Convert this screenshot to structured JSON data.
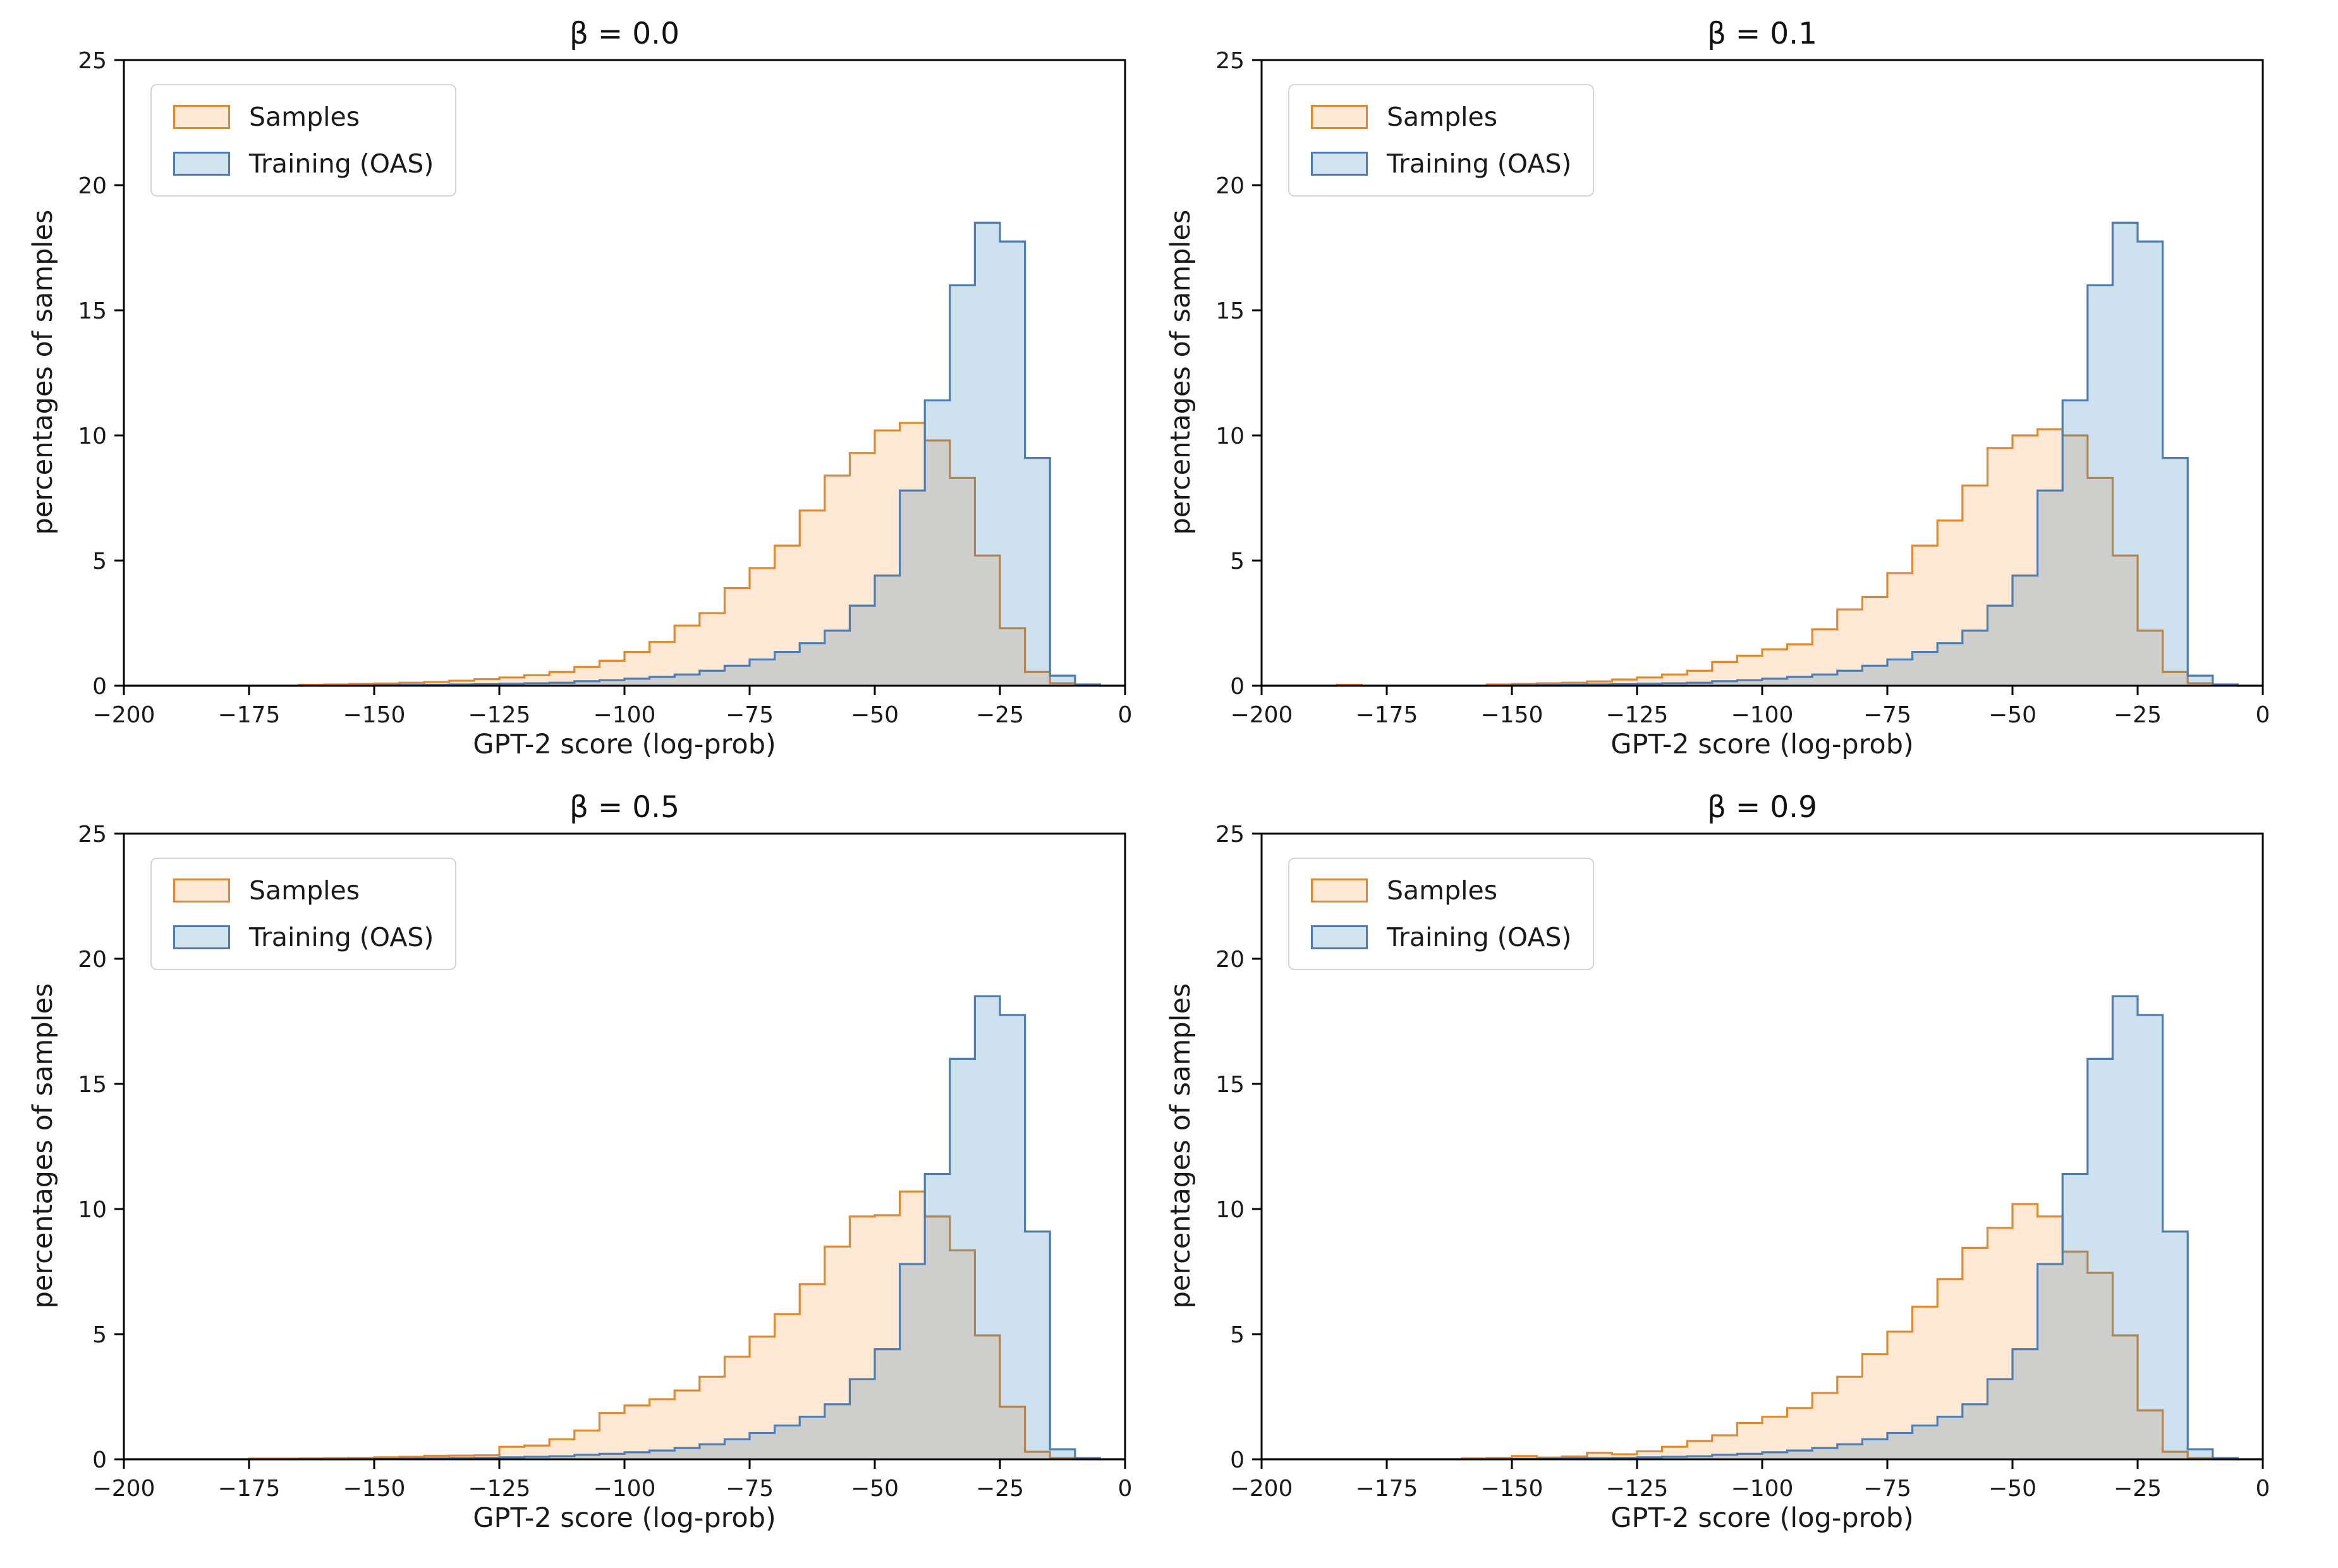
{
  "figure": {
    "ylabel": "percentages of samples",
    "xlabel": "GPT-2 score (log-prob)",
    "legend": {
      "position": "upper-left",
      "items": [
        "Samples",
        "Training (OAS)"
      ]
    },
    "colors": {
      "samples_edge": "#dd8a31",
      "samples_fill": "rgba(255,127,14,0.18)",
      "training_edge": "#4d7db1",
      "training_fill": "rgba(31,119,180,0.22)",
      "axes": "#000000",
      "text": "#1a1a1a"
    }
  },
  "chart_data": [
    {
      "type": "bar",
      "subtype": "step-histogram",
      "title": "β = 0.0",
      "xlabel": "GPT-2 score (log-prob)",
      "ylabel": "percentages of samples",
      "xlim": [
        -200,
        0
      ],
      "ylim": [
        0,
        25
      ],
      "xticks": [
        -200,
        -175,
        -150,
        -125,
        -100,
        -75,
        -50,
        -25,
        0
      ],
      "yticks": [
        0,
        5,
        10,
        15,
        20,
        25
      ],
      "grid": false,
      "legend_position": "upper-left",
      "bin_start": -200,
      "bin_width": 5,
      "series": [
        {
          "name": "Samples",
          "color": "#dd8a31",
          "fill": "rgba(255,127,14,0.18)",
          "values": [
            0,
            0,
            0,
            0,
            0,
            0,
            0,
            0.04,
            0.05,
            0.07,
            0.09,
            0.12,
            0.15,
            0.2,
            0.26,
            0.33,
            0.42,
            0.55,
            0.75,
            1.0,
            1.35,
            1.75,
            2.4,
            2.9,
            3.9,
            4.7,
            5.6,
            7.0,
            8.4,
            9.3,
            10.2,
            10.5,
            9.8,
            8.3,
            5.2,
            2.3,
            0.55,
            0.1,
            0.02,
            0
          ]
        },
        {
          "name": "Training (OAS)",
          "color": "#4d7db1",
          "fill": "rgba(31,119,180,0.22)",
          "values": [
            0,
            0,
            0,
            0,
            0,
            0,
            0,
            0,
            0,
            0,
            0.02,
            0.03,
            0.04,
            0.05,
            0.06,
            0.08,
            0.1,
            0.12,
            0.18,
            0.22,
            0.28,
            0.35,
            0.45,
            0.6,
            0.8,
            1.05,
            1.35,
            1.7,
            2.2,
            3.2,
            4.4,
            7.8,
            11.4,
            16.0,
            18.5,
            17.75,
            9.1,
            0.4,
            0.05,
            0
          ]
        }
      ]
    },
    {
      "type": "bar",
      "subtype": "step-histogram",
      "title": "β = 0.1",
      "xlabel": "GPT-2 score (log-prob)",
      "ylabel": "percentages of samples",
      "xlim": [
        -200,
        0
      ],
      "ylim": [
        0,
        25
      ],
      "xticks": [
        -200,
        -175,
        -150,
        -125,
        -100,
        -75,
        -50,
        -25,
        0
      ],
      "yticks": [
        0,
        5,
        10,
        15,
        20,
        25
      ],
      "grid": false,
      "legend_position": "upper-left",
      "bin_start": -200,
      "bin_width": 5,
      "series": [
        {
          "name": "Samples",
          "color": "#dd8a31",
          "fill": "rgba(255,127,14,0.18)",
          "values": [
            0,
            0,
            0,
            0.04,
            0,
            0,
            0,
            0,
            0,
            0.05,
            0.07,
            0.1,
            0.12,
            0.17,
            0.25,
            0.33,
            0.45,
            0.6,
            0.95,
            1.2,
            1.45,
            1.65,
            2.25,
            3.05,
            3.55,
            4.5,
            5.6,
            6.6,
            8.0,
            9.5,
            10.0,
            10.25,
            10.0,
            8.3,
            5.2,
            2.2,
            0.55,
            0.1,
            0.02,
            0
          ]
        },
        {
          "name": "Training (OAS)",
          "color": "#4d7db1",
          "fill": "rgba(31,119,180,0.22)",
          "values": [
            0,
            0,
            0,
            0,
            0,
            0,
            0,
            0,
            0,
            0,
            0.02,
            0.03,
            0.04,
            0.05,
            0.06,
            0.08,
            0.1,
            0.12,
            0.18,
            0.22,
            0.28,
            0.35,
            0.45,
            0.6,
            0.8,
            1.05,
            1.35,
            1.7,
            2.2,
            3.2,
            4.4,
            7.8,
            11.4,
            16.0,
            18.5,
            17.75,
            9.1,
            0.4,
            0.05,
            0
          ]
        }
      ]
    },
    {
      "type": "bar",
      "subtype": "step-histogram",
      "title": "β = 0.5",
      "xlabel": "GPT-2 score (log-prob)",
      "ylabel": "percentages of samples",
      "xlim": [
        -200,
        0
      ],
      "ylim": [
        0,
        25
      ],
      "xticks": [
        -200,
        -175,
        -150,
        -125,
        -100,
        -75,
        -50,
        -25,
        0
      ],
      "yticks": [
        0,
        5,
        10,
        15,
        20,
        25
      ],
      "grid": false,
      "legend_position": "upper-left",
      "bin_start": -200,
      "bin_width": 5,
      "series": [
        {
          "name": "Samples",
          "color": "#dd8a31",
          "fill": "rgba(255,127,14,0.18)",
          "values": [
            0,
            0,
            0,
            0,
            0,
            0.03,
            0.03,
            0.04,
            0.05,
            0.06,
            0.08,
            0.1,
            0.14,
            0.15,
            0.16,
            0.5,
            0.55,
            0.8,
            1.15,
            1.85,
            2.15,
            2.4,
            2.75,
            3.3,
            4.1,
            4.9,
            5.8,
            7.0,
            8.5,
            9.7,
            9.75,
            10.7,
            9.7,
            8.35,
            4.95,
            2.1,
            0.3,
            0.05,
            0,
            0
          ]
        },
        {
          "name": "Training (OAS)",
          "color": "#4d7db1",
          "fill": "rgba(31,119,180,0.22)",
          "values": [
            0,
            0,
            0,
            0,
            0,
            0,
            0,
            0,
            0,
            0,
            0.02,
            0.03,
            0.04,
            0.05,
            0.06,
            0.08,
            0.1,
            0.12,
            0.18,
            0.22,
            0.28,
            0.35,
            0.45,
            0.6,
            0.8,
            1.05,
            1.35,
            1.7,
            2.2,
            3.2,
            4.4,
            7.8,
            11.4,
            16.0,
            18.5,
            17.75,
            9.1,
            0.4,
            0.05,
            0
          ]
        }
      ]
    },
    {
      "type": "bar",
      "subtype": "step-histogram",
      "title": "β = 0.9",
      "xlabel": "GPT-2 score (log-prob)",
      "ylabel": "percentages of samples",
      "xlim": [
        -200,
        0
      ],
      "ylim": [
        0,
        25
      ],
      "xticks": [
        -200,
        -175,
        -150,
        -125,
        -100,
        -75,
        -50,
        -25,
        0
      ],
      "yticks": [
        0,
        5,
        10,
        15,
        20,
        25
      ],
      "grid": false,
      "legend_position": "upper-left",
      "bin_start": -200,
      "bin_width": 5,
      "series": [
        {
          "name": "Samples",
          "color": "#dd8a31",
          "fill": "rgba(255,127,14,0.18)",
          "values": [
            0,
            0,
            0,
            0,
            0,
            0,
            0,
            0,
            0.04,
            0.06,
            0.13,
            0.07,
            0.11,
            0.26,
            0.2,
            0.32,
            0.5,
            0.73,
            0.96,
            1.45,
            1.7,
            2.05,
            2.65,
            3.3,
            4.2,
            5.1,
            6.1,
            7.2,
            8.45,
            9.25,
            10.2,
            9.7,
            8.3,
            7.45,
            4.95,
            1.95,
            0.3,
            0.05,
            0,
            0
          ]
        },
        {
          "name": "Training (OAS)",
          "color": "#4d7db1",
          "fill": "rgba(31,119,180,0.22)",
          "values": [
            0,
            0,
            0,
            0,
            0,
            0,
            0,
            0,
            0,
            0,
            0.02,
            0.03,
            0.04,
            0.05,
            0.06,
            0.08,
            0.1,
            0.12,
            0.18,
            0.22,
            0.28,
            0.35,
            0.45,
            0.6,
            0.8,
            1.05,
            1.35,
            1.7,
            2.2,
            3.2,
            4.4,
            7.8,
            11.4,
            16.0,
            18.5,
            17.75,
            9.1,
            0.4,
            0.05,
            0
          ]
        }
      ]
    }
  ]
}
